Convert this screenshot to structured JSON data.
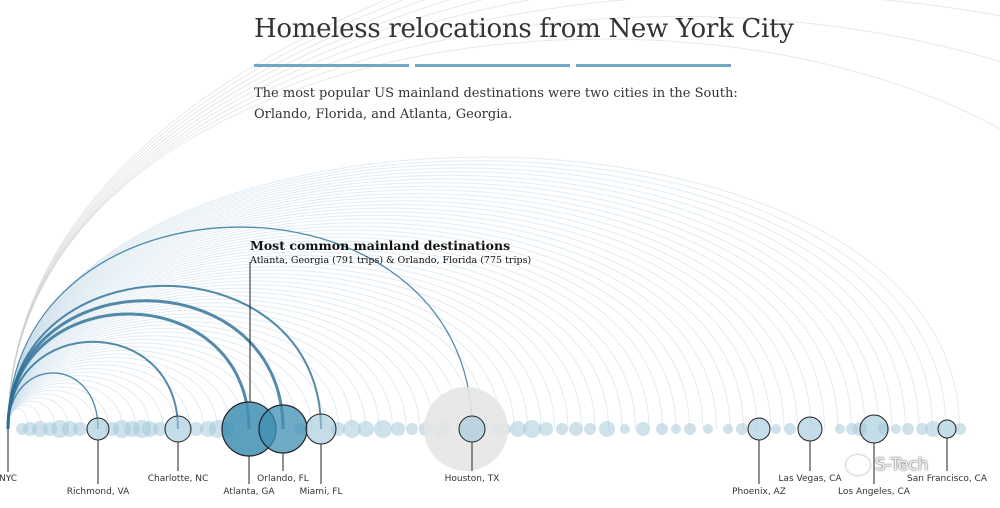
{
  "title": "Homeless relocations from New York City",
  "subtitle_lines": [
    "The most popular US mainland destinations were two cities in the South:",
    "Orlando, Florida, and Atlanta, Georgia."
  ],
  "annotation": {
    "title": "Most common mainland destinations",
    "detail": "Atlanta, Georgia (791 trips) & Orlando, Florida (775 trips)"
  },
  "watermark": "S-Tech",
  "colors": {
    "accent": "#6fa8c7",
    "arc_light": "#c9dde9",
    "arc_dark": "#2b6e93",
    "arc_grey": "#cccccc",
    "bubble": "#9fc6da",
    "bubble_big": "#3f8fb3",
    "houston_halo": "#e6e6e6",
    "leader": "#222222"
  },
  "chart_data": {
    "type": "arc",
    "origin": "NYC",
    "labeled_destinations": [
      {
        "name": "NYC"
      },
      {
        "name": "Richmond, VA"
      },
      {
        "name": "Charlotte, NC"
      },
      {
        "name": "Atlanta, GA",
        "trips": 791
      },
      {
        "name": "Orlando, FL",
        "trips": 775
      },
      {
        "name": "Miami, FL"
      },
      {
        "name": "Houston, TX"
      },
      {
        "name": "Phoenix, AZ"
      },
      {
        "name": "Las Vegas, CA"
      },
      {
        "name": "Los Angeles, CA"
      },
      {
        "name": "San Francisco, CA"
      }
    ]
  }
}
